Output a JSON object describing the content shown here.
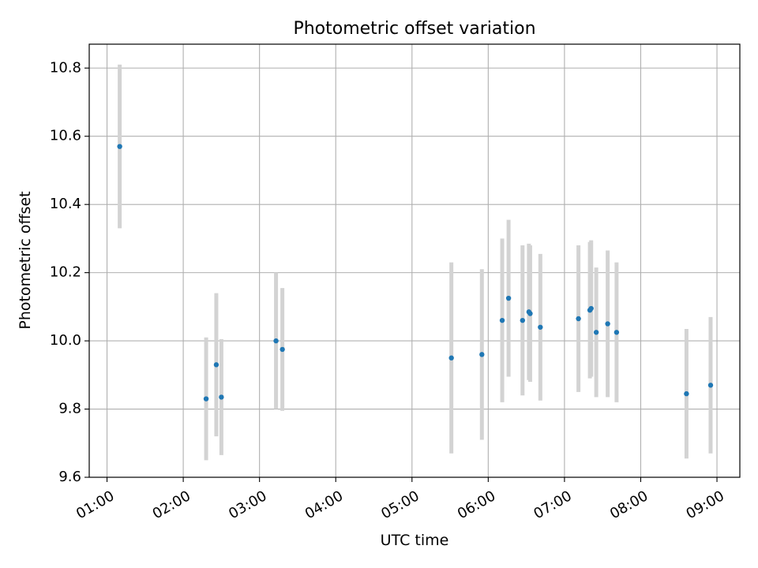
{
  "chart_data": {
    "type": "scatter",
    "title": "Photometric offset variation",
    "xlabel": "UTC time",
    "ylabel": "Photometric offset",
    "x_ticks": [
      "01:00",
      "02:00",
      "03:00",
      "04:00",
      "05:00",
      "06:00",
      "07:00",
      "08:00",
      "09:00"
    ],
    "y_ticks": [
      "9.6",
      "9.8",
      "10.0",
      "10.2",
      "10.4",
      "10.6",
      "10.8"
    ],
    "xlim": [
      "00:46",
      "09:18"
    ],
    "ylim": [
      9.6,
      10.87
    ],
    "grid": true,
    "colors": {
      "points": "#1f77b4",
      "errorbars": "#d3d3d3",
      "grid": "#b0b0b0"
    },
    "points": [
      {
        "x": "01:10",
        "y": 10.57,
        "err": 0.24
      },
      {
        "x": "02:18",
        "y": 9.83,
        "err": 0.18
      },
      {
        "x": "02:26",
        "y": 9.93,
        "err": 0.21
      },
      {
        "x": "02:30",
        "y": 9.835,
        "err": 0.17
      },
      {
        "x": "03:13",
        "y": 10.0,
        "err": 0.2
      },
      {
        "x": "03:18",
        "y": 9.975,
        "err": 0.18
      },
      {
        "x": "05:31",
        "y": 9.95,
        "err": 0.28
      },
      {
        "x": "05:55",
        "y": 9.96,
        "err": 0.25
      },
      {
        "x": "06:11",
        "y": 10.06,
        "err": 0.24
      },
      {
        "x": "06:16",
        "y": 10.125,
        "err": 0.23
      },
      {
        "x": "06:27",
        "y": 10.06,
        "err": 0.22
      },
      {
        "x": "06:32",
        "y": 10.085,
        "err": 0.2
      },
      {
        "x": "06:33",
        "y": 10.08,
        "err": 0.2
      },
      {
        "x": "06:41",
        "y": 10.04,
        "err": 0.215
      },
      {
        "x": "07:11",
        "y": 10.065,
        "err": 0.215
      },
      {
        "x": "07:20",
        "y": 10.09,
        "err": 0.2
      },
      {
        "x": "07:21",
        "y": 10.095,
        "err": 0.2
      },
      {
        "x": "07:25",
        "y": 10.025,
        "err": 0.19
      },
      {
        "x": "07:34",
        "y": 10.05,
        "err": 0.215
      },
      {
        "x": "07:41",
        "y": 10.025,
        "err": 0.205
      },
      {
        "x": "08:36",
        "y": 9.845,
        "err": 0.19
      },
      {
        "x": "08:55",
        "y": 9.87,
        "err": 0.2
      }
    ]
  }
}
